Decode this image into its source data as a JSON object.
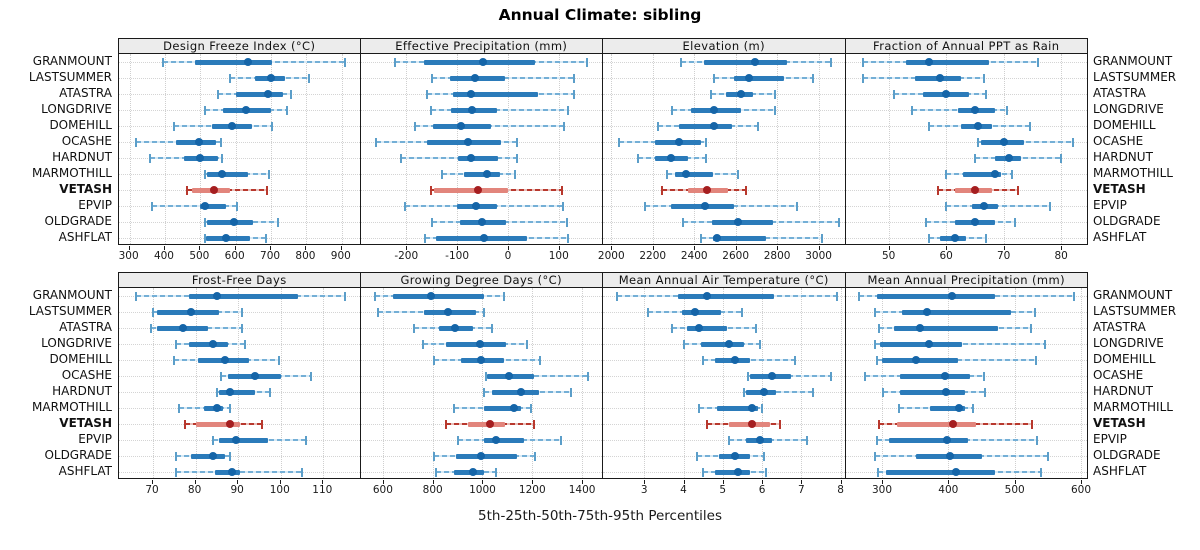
{
  "title": "Annual Climate: sibling",
  "caption": "5th-25th-50th-75th-95th Percentiles",
  "sites": [
    "GRANMOUNT",
    "LASTSUMMER",
    "ATASTRA",
    "LONGDRIVE",
    "DOMEHILL",
    "OCASHE",
    "HARDNUT",
    "MARMOTHILL",
    "VETASH",
    "EPVIP",
    "OLDGRADE",
    "ASHFLAT"
  ],
  "highlight_site": "VETASH",
  "colors": {
    "blue_whisker": "#74afd6",
    "blue_whisker_gap": "#d8eaf6",
    "blue_cap": "#5b9ec9",
    "blue_box": "#2b7bba",
    "blue_dot": "#1565a8",
    "red_whisker": "#b8382d",
    "red_whisker_gap": "#e9beb9",
    "red_cap": "#b8382d",
    "red_box": "#e2857c",
    "red_dot": "#a51e20",
    "strip_bg": "#ececec",
    "panel_border": "#1a1a1a",
    "grid": "#cfcfcf"
  },
  "chart_data": {
    "type": "percentile-whisker-trellis",
    "percentiles": [
      5,
      25,
      50,
      75,
      95
    ],
    "layout": "2 rows x 4 cols, site names on both left and right margins",
    "title": "Annual Climate: sibling",
    "caption": "5th-25th-50th-75th-95th Percentiles",
    "categories": [
      "GRANMOUNT",
      "LASTSUMMER",
      "ATASTRA",
      "LONGDRIVE",
      "DOMEHILL",
      "OCASHE",
      "HARDNUT",
      "MARMOTHILL",
      "VETASH",
      "EPVIP",
      "OLDGRADE",
      "ASHFLAT"
    ],
    "highlight": "VETASH",
    "panels": [
      {
        "title": "Design Freeze Index (°C)",
        "xlim": [
          270,
          950
        ],
        "ticks": [
          300,
          400,
          500,
          600,
          700,
          800,
          900
        ],
        "values": [
          [
            393,
            484,
            635,
            702,
            910
          ],
          [
            583,
            655,
            700,
            740,
            807
          ],
          [
            550,
            600,
            690,
            735,
            755
          ],
          [
            513,
            565,
            630,
            700,
            745
          ],
          [
            425,
            533,
            590,
            647,
            703
          ],
          [
            318,
            430,
            495,
            545,
            558
          ],
          [
            358,
            453,
            500,
            550,
            560
          ],
          [
            514,
            520,
            560,
            635,
            695
          ],
          [
            462,
            475,
            540,
            583,
            688
          ],
          [
            362,
            500,
            514,
            572,
            605
          ],
          [
            514,
            520,
            595,
            650,
            720
          ],
          [
            512,
            517,
            572,
            640,
            686
          ]
        ]
      },
      {
        "title": "Effective Precipitation (mm)",
        "xlim": [
          -290,
          185
        ],
        "ticks": [
          -200,
          -100,
          0,
          100
        ],
        "values": [
          [
            -223,
            -165,
            -50,
            54,
            155
          ],
          [
            -149,
            -114,
            -65,
            -5,
            130
          ],
          [
            -159,
            -109,
            -72,
            60,
            129
          ],
          [
            -152,
            -112,
            -70,
            -21,
            119
          ],
          [
            -182,
            -148,
            -93,
            -33,
            111
          ],
          [
            -260,
            -159,
            -78,
            -13,
            17
          ],
          [
            -210,
            -99,
            -72,
            -20,
            18
          ],
          [
            -130,
            -86,
            -42,
            -16,
            13
          ],
          [
            -152,
            -145,
            -58,
            0,
            106
          ],
          [
            -202,
            -101,
            -63,
            -22,
            108
          ],
          [
            -149,
            -94,
            -52,
            -4,
            116
          ],
          [
            -163,
            -141,
            -47,
            37,
            119
          ]
        ]
      },
      {
        "title": "Elevation (m)",
        "xlim": [
          1960,
          3125
        ],
        "ticks": [
          2000,
          2200,
          2400,
          2600,
          2800,
          3000
        ],
        "values": [
          [
            2336,
            2448,
            2694,
            2848,
            3059
          ],
          [
            2495,
            2590,
            2665,
            2835,
            2975
          ],
          [
            2480,
            2555,
            2625,
            2685,
            2790
          ],
          [
            2295,
            2385,
            2495,
            2625,
            2790
          ],
          [
            2225,
            2325,
            2495,
            2580,
            2710
          ],
          [
            2035,
            2210,
            2325,
            2435,
            2455
          ],
          [
            2130,
            2210,
            2290,
            2370,
            2455
          ],
          [
            2270,
            2305,
            2360,
            2490,
            2610
          ],
          [
            2245,
            2370,
            2460,
            2565,
            2650
          ],
          [
            2165,
            2290,
            2450,
            2590,
            2895
          ],
          [
            2345,
            2485,
            2610,
            2780,
            3100
          ],
          [
            2435,
            2490,
            2510,
            2745,
            3015
          ]
        ]
      },
      {
        "title": "Fraction of Annual PPT as Rain",
        "xlim": [
          42.5,
          84.5
        ],
        "ticks": [
          50,
          60,
          70,
          80
        ],
        "values": [
          [
            45.5,
            53,
            57,
            67.5,
            76
          ],
          [
            45.5,
            54.5,
            59,
            62.5,
            66.5
          ],
          [
            51,
            56,
            60,
            64,
            67
          ],
          [
            54,
            62,
            65,
            68.5,
            70.5
          ],
          [
            57,
            62.5,
            65.5,
            68,
            74.5
          ],
          [
            65.5,
            66,
            70,
            73.5,
            82
          ],
          [
            65,
            68.5,
            71,
            73,
            80
          ],
          [
            60,
            63,
            68.5,
            69.5,
            71.5
          ],
          [
            58.5,
            61.5,
            65,
            68,
            72.5
          ],
          [
            60,
            64.5,
            66.5,
            69,
            78
          ],
          [
            56.5,
            61.5,
            65,
            68.5,
            72
          ],
          [
            57,
            59,
            61.5,
            63.5,
            67
          ]
        ]
      },
      {
        "title": "Frost-Free Days",
        "xlim": [
          62,
          118.5
        ],
        "ticks": [
          70,
          80,
          90,
          100,
          110
        ],
        "values": [
          [
            66,
            78.5,
            85,
            104,
            115
          ],
          [
            70,
            71,
            79,
            85.5,
            91
          ],
          [
            69.5,
            71,
            77,
            83,
            91
          ],
          [
            75.5,
            78.5,
            84,
            87.5,
            91.5
          ],
          [
            75,
            80.5,
            87,
            92.5,
            99.5
          ],
          [
            86,
            87.5,
            94,
            100,
            107
          ],
          [
            85,
            85.5,
            88,
            94,
            97.5
          ],
          [
            76,
            82,
            85,
            86.5,
            88
          ],
          [
            77.5,
            80,
            88,
            90.5,
            95.5
          ],
          [
            84,
            85.5,
            89.5,
            97,
            106
          ],
          [
            75.5,
            79,
            84,
            87,
            88
          ],
          [
            75.5,
            84.5,
            88.5,
            90.5,
            105
          ]
        ]
      },
      {
        "title": "Growing Degree Days (°C)",
        "xlim": [
          510,
          1480
        ],
        "ticks": [
          600,
          800,
          1000,
          1200,
          1400
        ],
        "values": [
          [
            570,
            640,
            795,
            1005,
            1085
          ],
          [
            580,
            765,
            860,
            975,
            1005
          ],
          [
            725,
            825,
            890,
            960,
            1040
          ],
          [
            760,
            855,
            990,
            1095,
            1180
          ],
          [
            805,
            915,
            995,
            1085,
            1230
          ],
          [
            1015,
            1020,
            1105,
            1205,
            1425
          ],
          [
            1005,
            1040,
            1155,
            1225,
            1355
          ],
          [
            885,
            1005,
            1125,
            1155,
            1195
          ],
          [
            855,
            940,
            1030,
            1090,
            1205
          ],
          [
            900,
            1005,
            1055,
            1165,
            1315
          ],
          [
            805,
            895,
            995,
            1140,
            1210
          ],
          [
            815,
            885,
            960,
            1005,
            1055
          ]
        ]
      },
      {
        "title": "Mean Annual Air Temperature (°C)",
        "xlim": [
          1.95,
          8.1
        ],
        "ticks": [
          3,
          4,
          5,
          6,
          7,
          8
        ],
        "values": [
          [
            2.3,
            3.85,
            4.6,
            6.3,
            7.9
          ],
          [
            3.1,
            3.95,
            4.3,
            4.95,
            5.5
          ],
          [
            3.7,
            4.1,
            4.4,
            5.1,
            5.85
          ],
          [
            4.0,
            4.45,
            5.15,
            5.55,
            5.95
          ],
          [
            4.5,
            4.8,
            5.3,
            5.7,
            6.85
          ],
          [
            5.65,
            5.7,
            6.25,
            6.75,
            7.75
          ],
          [
            5.55,
            5.6,
            6.05,
            6.35,
            7.3
          ],
          [
            4.4,
            4.85,
            5.75,
            5.9,
            6.0
          ],
          [
            4.6,
            5.15,
            5.75,
            6.2,
            6.45
          ],
          [
            5.15,
            5.6,
            5.95,
            6.25,
            7.15
          ],
          [
            4.35,
            4.9,
            5.3,
            5.7,
            6.05
          ],
          [
            4.5,
            4.8,
            5.4,
            5.7,
            6.1
          ]
        ]
      },
      {
        "title": "Mean Annual Precipitation (mm)",
        "xlim": [
          245,
          609
        ],
        "ticks": [
          300,
          400,
          500,
          600
        ],
        "values": [
          [
            266,
            293,
            405,
            470,
            590
          ],
          [
            290,
            330,
            368,
            495,
            530
          ],
          [
            295,
            318,
            357,
            475,
            525
          ],
          [
            290,
            297,
            371,
            421,
            546
          ],
          [
            293,
            300,
            352,
            414,
            532
          ],
          [
            275,
            327,
            395,
            432,
            453
          ],
          [
            301,
            327,
            397,
            425,
            455
          ],
          [
            325,
            372,
            416,
            425,
            437
          ],
          [
            295,
            322,
            407,
            442,
            526
          ],
          [
            293,
            310,
            398,
            430,
            534
          ],
          [
            290,
            352,
            402,
            450,
            550
          ],
          [
            294,
            306,
            412,
            470,
            540
          ]
        ]
      }
    ]
  }
}
